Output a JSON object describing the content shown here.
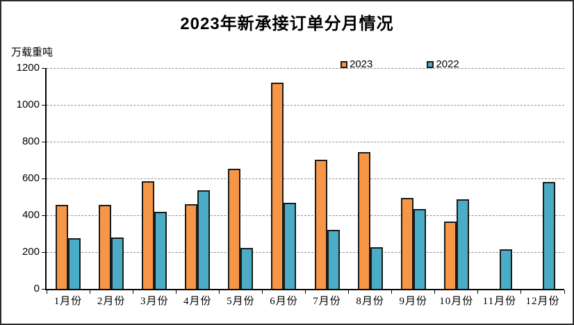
{
  "chart_data": {
    "type": "bar",
    "title": "2023年新承接订单分月情况",
    "unit_label": "万载重吨",
    "xlabel": "",
    "ylabel": "万载重吨",
    "categories": [
      "1月份",
      "2月份",
      "3月份",
      "4月份",
      "5月份",
      "6月份",
      "7月份",
      "8月份",
      "9月份",
      "10月份",
      "11月份",
      "12月份"
    ],
    "series": [
      {
        "name": "2023",
        "color": "#F79646",
        "values": [
          456,
          458,
          585,
          459,
          652,
          1119,
          701,
          745,
          495,
          365,
          null,
          null
        ]
      },
      {
        "name": "2022",
        "color": "#4BACC6",
        "values": [
          275,
          280,
          420,
          537,
          223,
          469,
          319,
          227,
          434,
          487,
          214,
          583
        ]
      }
    ],
    "ylim": [
      0,
      1200
    ],
    "y_ticks": [
      0,
      200,
      400,
      600,
      800,
      1000,
      1200
    ],
    "grid": true,
    "gridline_style": "dashed",
    "legend_position": "top",
    "bar_border_color": "#1a1a1a",
    "axis_color": "#000000",
    "gridline_color": "#8f8f8f",
    "background_color": "#ffffff"
  }
}
